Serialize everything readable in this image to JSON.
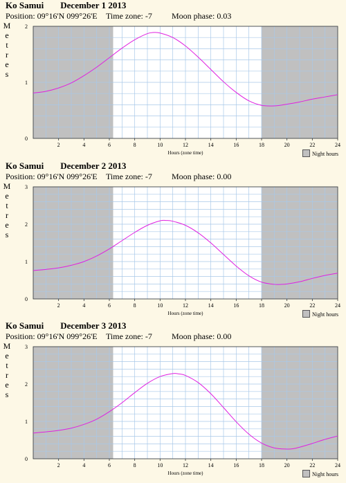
{
  "chart_data": [
    {
      "type": "area",
      "location": "Ko Samui",
      "date": "December 1 2013",
      "position": "Position: 09°16'N 099°26'E",
      "timezone": "Time zone: -7",
      "moon": "Moon phase: 0.03",
      "ylabel": "Metres",
      "xlabel": "Hours (zone time)",
      "legend": "Night hours",
      "xlim": [
        0,
        24
      ],
      "ylim": [
        0,
        2
      ],
      "xticks": [
        "2",
        "4",
        "6",
        "8",
        "10",
        "12",
        "14",
        "16",
        "18",
        "20",
        "22",
        "24"
      ],
      "yticks": [
        "0",
        "1",
        "2"
      ],
      "night": [
        [
          0,
          6.3
        ],
        [
          18.0,
          24
        ]
      ],
      "series": [
        {
          "x": [
            0,
            1,
            2,
            3,
            4,
            5,
            6,
            7,
            8,
            9,
            9.5,
            10,
            11,
            12,
            13,
            14,
            15,
            16,
            17,
            18,
            19,
            20,
            21,
            22,
            23,
            24
          ],
          "values": [
            0.81,
            0.84,
            0.9,
            0.99,
            1.12,
            1.27,
            1.44,
            1.61,
            1.76,
            1.87,
            1.89,
            1.88,
            1.8,
            1.65,
            1.45,
            1.23,
            1.01,
            0.82,
            0.67,
            0.59,
            0.58,
            0.61,
            0.65,
            0.7,
            0.74,
            0.78
          ]
        }
      ]
    },
    {
      "type": "area",
      "location": "Ko Samui",
      "date": "December 2 2013",
      "position": "Position: 09°16'N 099°26'E",
      "timezone": "Time zone: -7",
      "moon": "Moon phase: 0.00",
      "ylabel": "Metres",
      "xlabel": "Hours (zone time)",
      "legend": "Night hours",
      "xlim": [
        0,
        24
      ],
      "ylim": [
        0,
        3
      ],
      "xticks": [
        "2",
        "4",
        "6",
        "8",
        "10",
        "12",
        "14",
        "16",
        "18",
        "20",
        "22",
        "24"
      ],
      "yticks": [
        "0",
        "1",
        "2",
        "3"
      ],
      "night": [
        [
          0,
          6.3
        ],
        [
          18.0,
          24
        ]
      ],
      "series": [
        {
          "x": [
            0,
            1,
            2,
            3,
            4,
            5,
            6,
            7,
            8,
            9,
            10,
            10.5,
            11,
            12,
            13,
            14,
            15,
            16,
            17,
            18,
            19,
            19.5,
            20,
            21,
            22,
            23,
            24
          ],
          "values": [
            0.76,
            0.79,
            0.83,
            0.9,
            1.0,
            1.15,
            1.34,
            1.56,
            1.78,
            1.97,
            2.09,
            2.1,
            2.08,
            1.97,
            1.77,
            1.5,
            1.19,
            0.88,
            0.62,
            0.45,
            0.39,
            0.39,
            0.4,
            0.46,
            0.55,
            0.63,
            0.69
          ]
        }
      ]
    },
    {
      "type": "area",
      "location": "Ko Samui",
      "date": "December 3 2013",
      "position": "Position: 09°16'N 099°26'E",
      "timezone": "Time zone: -7",
      "moon": "Moon phase: 0.00",
      "ylabel": "Metres",
      "xlabel": "Hours (zone time)",
      "legend": "Night hours",
      "xlim": [
        0,
        24
      ],
      "ylim": [
        0,
        3
      ],
      "xticks": [
        "2",
        "4",
        "6",
        "8",
        "10",
        "12",
        "14",
        "16",
        "18",
        "20",
        "22",
        "24"
      ],
      "yticks": [
        "0",
        "1",
        "2",
        "3"
      ],
      "night": [
        [
          0,
          6.3
        ],
        [
          18.0,
          24
        ]
      ],
      "series": [
        {
          "x": [
            0,
            1,
            2,
            3,
            4,
            5,
            6,
            7,
            8,
            9,
            10,
            11,
            11.5,
            12,
            13,
            14,
            15,
            16,
            17,
            18,
            19,
            20,
            20.5,
            21,
            22,
            23,
            24
          ],
          "values": [
            0.69,
            0.72,
            0.76,
            0.82,
            0.92,
            1.06,
            1.26,
            1.5,
            1.77,
            2.02,
            2.2,
            2.28,
            2.27,
            2.23,
            2.04,
            1.74,
            1.37,
            0.99,
            0.66,
            0.42,
            0.29,
            0.26,
            0.27,
            0.31,
            0.41,
            0.52,
            0.61
          ]
        }
      ]
    }
  ]
}
